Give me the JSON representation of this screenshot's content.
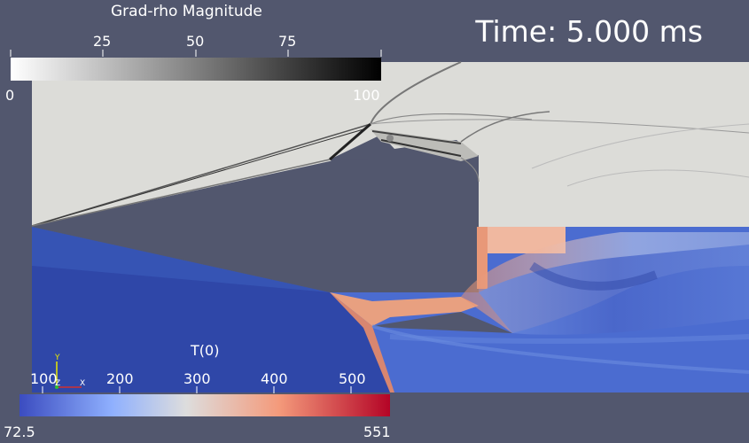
{
  "time_label": "Time: 5.000 ms",
  "grad_rho_legend": {
    "title": "Grad-rho Magnitude",
    "min_label": "0",
    "max_label": "100",
    "tick_labels": [
      "25",
      "50",
      "75"
    ],
    "colors": {
      "low": "#ffffff",
      "high": "#000000"
    }
  },
  "temperature_legend": {
    "title": "T(0)",
    "min_label": "72.5",
    "max_label": "551",
    "tick_labels": [
      "100",
      "200",
      "300",
      "400",
      "500"
    ],
    "colors": {
      "low": "#3b4cc0",
      "mid": "#dddddd",
      "high": "#b40426"
    }
  },
  "axes_triad": {
    "x": "X",
    "y": "Y",
    "z": "Z"
  },
  "colors": {
    "background": "#52576e",
    "upper_field": "#dcdcd8",
    "lower_field": "#2f47a8"
  }
}
